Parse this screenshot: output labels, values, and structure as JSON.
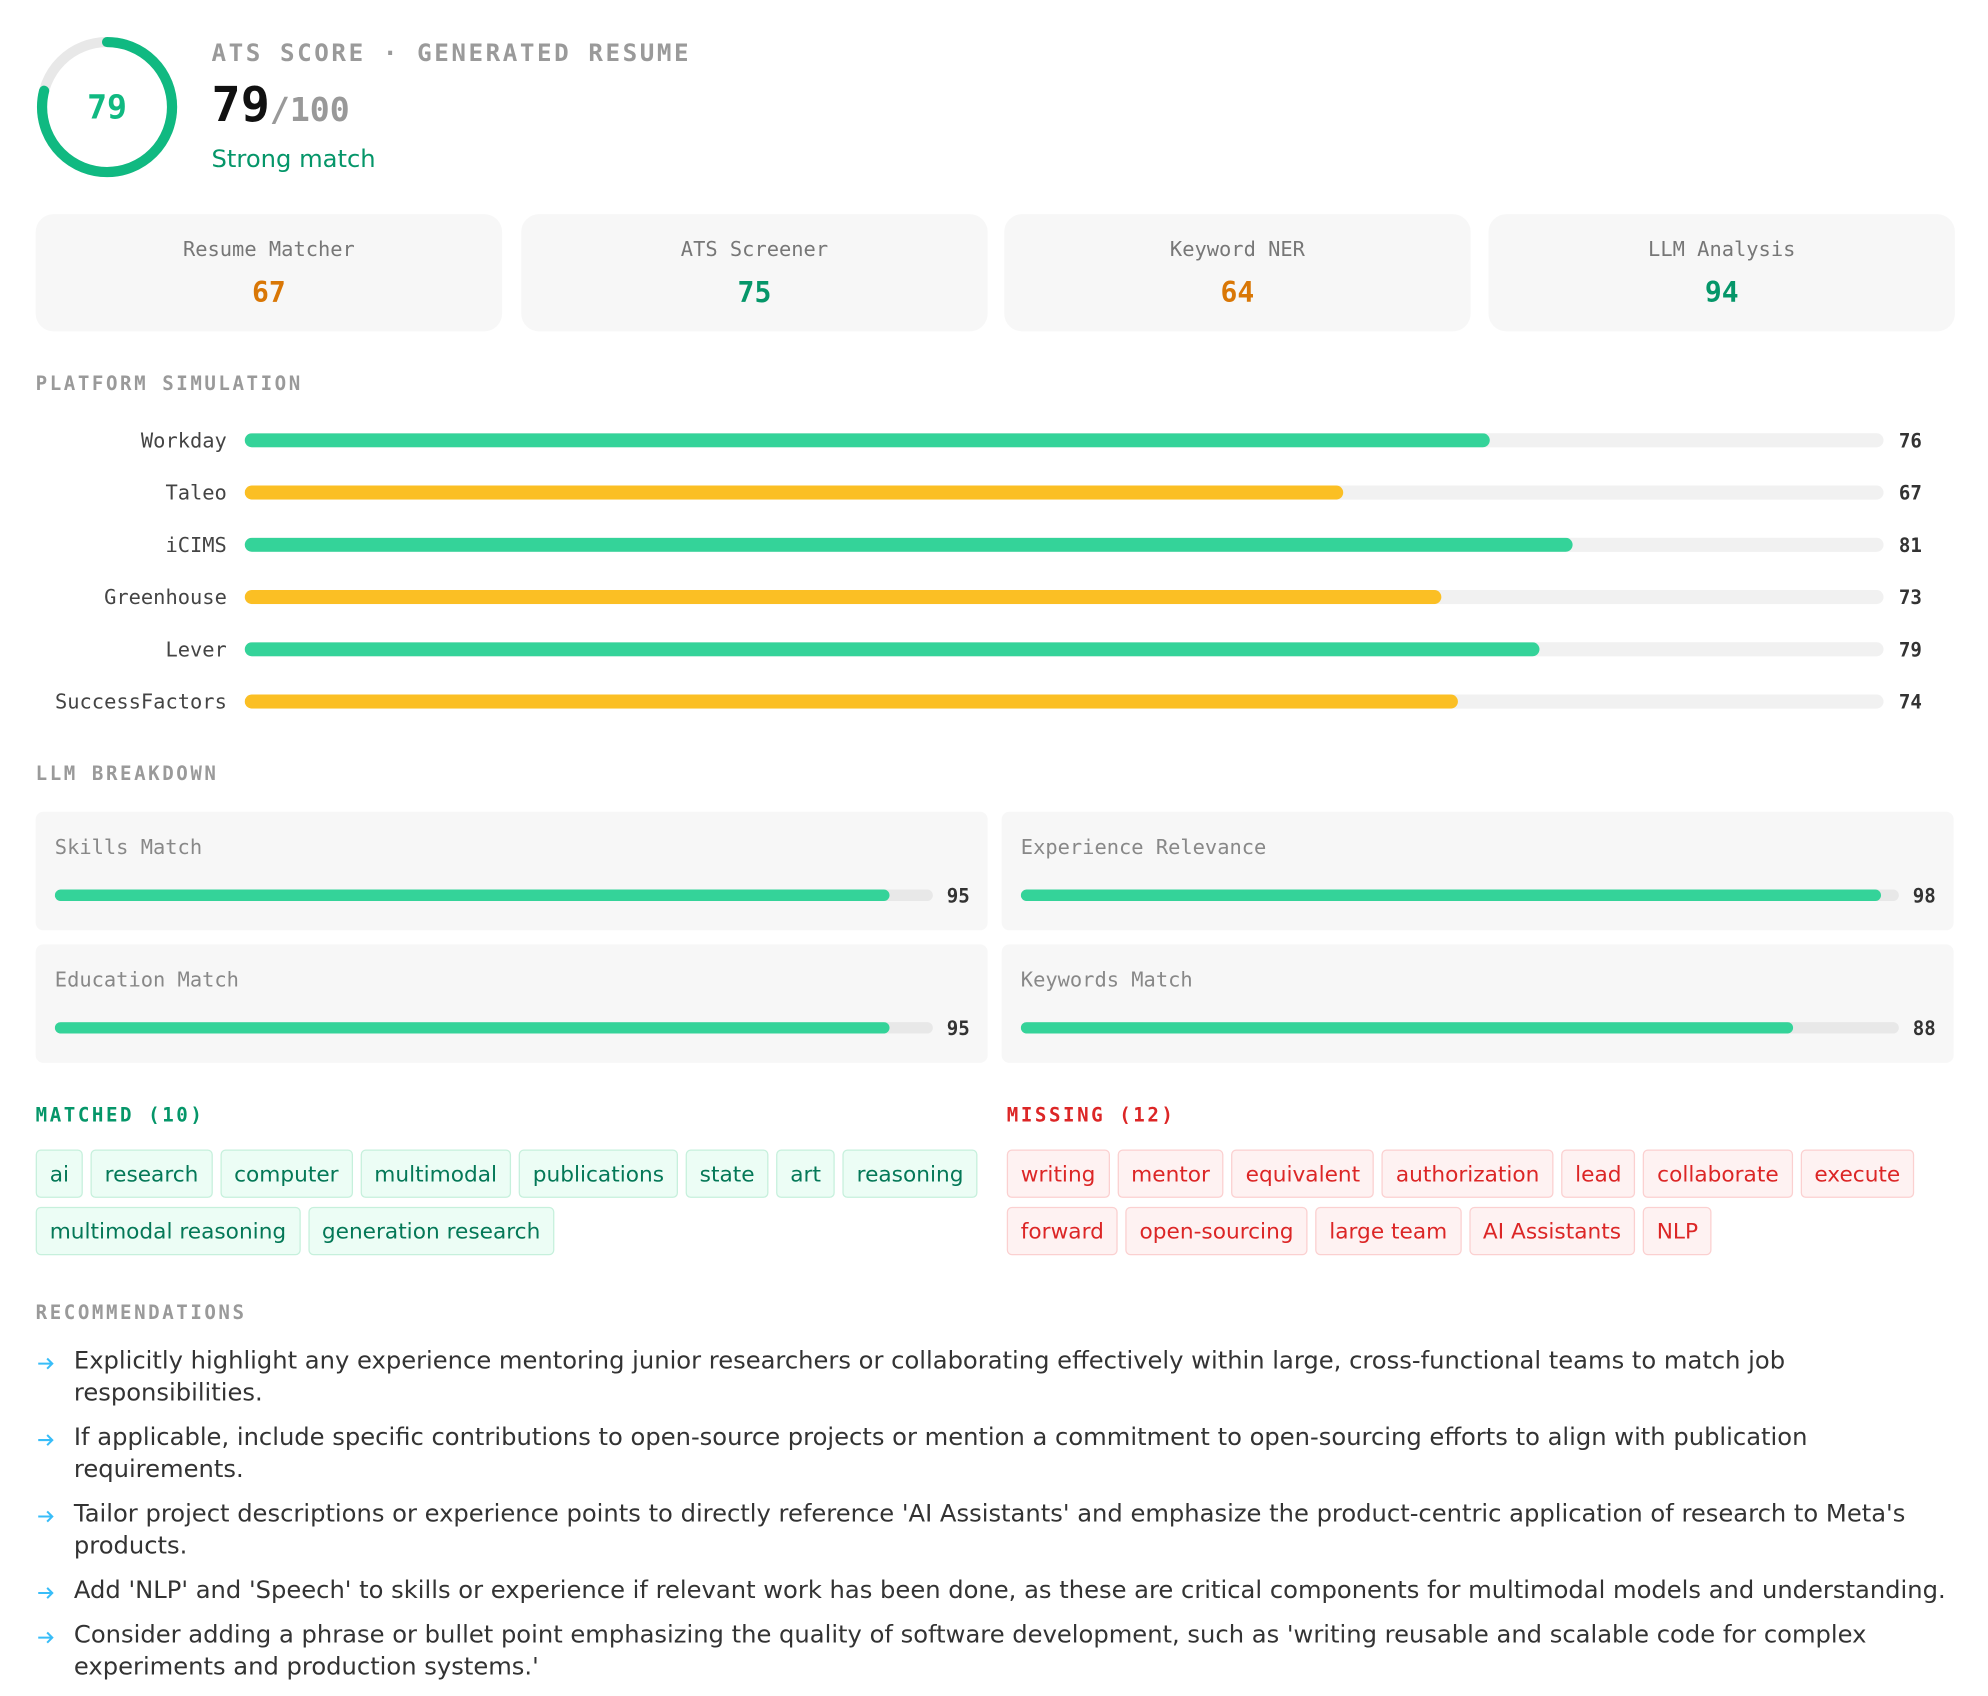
{
  "header": {
    "label": "ATS SCORE · GENERATED RESUME",
    "score": 79,
    "out_of": "/100",
    "verdict": "Strong match",
    "range": [
      0,
      100
    ]
  },
  "scores": [
    {
      "name": "Resume Matcher",
      "value": 67,
      "color": "#d97706"
    },
    {
      "name": "ATS Screener",
      "value": 75,
      "color": "#059669"
    },
    {
      "name": "Keyword NER",
      "value": 64,
      "color": "#d97706"
    },
    {
      "name": "LLM Analysis",
      "value": 94,
      "color": "#059669"
    }
  ],
  "platform": {
    "title": "PLATFORM SIMULATION",
    "range": [
      0,
      100
    ],
    "items": [
      {
        "name": "Workday",
        "value": 76,
        "color": "#34d399"
      },
      {
        "name": "Taleo",
        "value": 67,
        "color": "#fbbf24"
      },
      {
        "name": "iCIMS",
        "value": 81,
        "color": "#34d399"
      },
      {
        "name": "Greenhouse",
        "value": 73,
        "color": "#fbbf24"
      },
      {
        "name": "Lever",
        "value": 79,
        "color": "#34d399"
      },
      {
        "name": "SuccessFactors",
        "value": 74,
        "color": "#fbbf24"
      }
    ]
  },
  "breakdown": {
    "title": "LLM BREAKDOWN",
    "range": [
      0,
      100
    ],
    "items": [
      {
        "name": "Skills Match",
        "value": 95,
        "color": "#34d399"
      },
      {
        "name": "Experience Relevance",
        "value": 98,
        "color": "#34d399"
      },
      {
        "name": "Education Match",
        "value": 95,
        "color": "#34d399"
      },
      {
        "name": "Keywords Match",
        "value": 88,
        "color": "#34d399"
      }
    ]
  },
  "matched": {
    "title": "MATCHED (10)",
    "keywords": [
      "ai",
      "research",
      "computer",
      "multimodal",
      "publications",
      "state",
      "art",
      "reasoning",
      "multimodal reasoning",
      "generation research"
    ]
  },
  "missing": {
    "title": "MISSING (12)",
    "keywords": [
      "writing",
      "mentor",
      "equivalent",
      "authorization",
      "lead",
      "collaborate",
      "execute",
      "forward",
      "open-sourcing",
      "large team",
      "AI Assistants",
      "NLP"
    ]
  },
  "recommendations": {
    "title": "RECOMMENDATIONS",
    "items": [
      "Explicitly highlight any experience mentoring junior researchers or collaborating effectively within large, cross-functional teams to match job responsibilities.",
      "If applicable, include specific contributions to open-source projects or mention a commitment to open-sourcing efforts to align with publication requirements.",
      "Tailor project descriptions or experience points to directly reference 'AI Assistants' and emphasize the product-centric application of research to Meta's products.",
      "Add 'NLP' and 'Speech' to skills or experience if relevant work has been done, as these are critical components for multimodal models and understanding.",
      "Consider adding a phrase or bullet point emphasizing the quality of software development, such as 'writing reusable and scalable code for complex experiments and production systems.'"
    ]
  }
}
